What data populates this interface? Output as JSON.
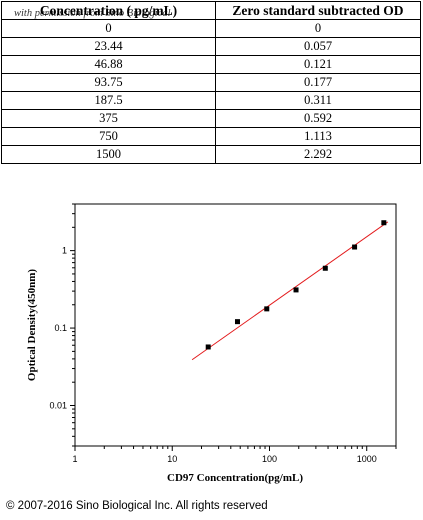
{
  "watermark": "with permission from Sino Biological",
  "table": {
    "headers": [
      "Concentration ( pg/mL)",
      "Zero standard subtracted OD"
    ],
    "rows": [
      [
        "0",
        "0"
      ],
      [
        "23.44",
        "0.057"
      ],
      [
        "46.88",
        "0.121"
      ],
      [
        "93.75",
        "0.177"
      ],
      [
        "187.5",
        "0.311"
      ],
      [
        "375",
        "0.592"
      ],
      [
        "750",
        "1.113"
      ],
      [
        "1500",
        "2.292"
      ]
    ]
  },
  "chart_data": {
    "type": "scatter",
    "title": "",
    "xlabel": "CD97 Concentration(pg/mL)",
    "ylabel": "Optical Density(450nm)",
    "xscale": "log",
    "yscale": "log",
    "xlim": [
      1,
      2000
    ],
    "ylim": [
      0.003,
      4
    ],
    "xticks": [
      1,
      10,
      100,
      1000
    ],
    "yticks": [
      0.01,
      0.1,
      1
    ],
    "x": [
      23.44,
      46.88,
      93.75,
      187.5,
      375,
      750,
      1500
    ],
    "y": [
      0.057,
      0.121,
      0.177,
      0.311,
      0.592,
      1.113,
      2.292
    ],
    "fit_line": {
      "x": [
        16,
        1650
      ],
      "y": [
        0.039,
        2.35
      ],
      "color": "#e31a1c"
    },
    "marker_color": "#000000",
    "grid": false,
    "legend": "none"
  },
  "copyright": "© 2007-2016 Sino Biological Inc. All rights reserved"
}
